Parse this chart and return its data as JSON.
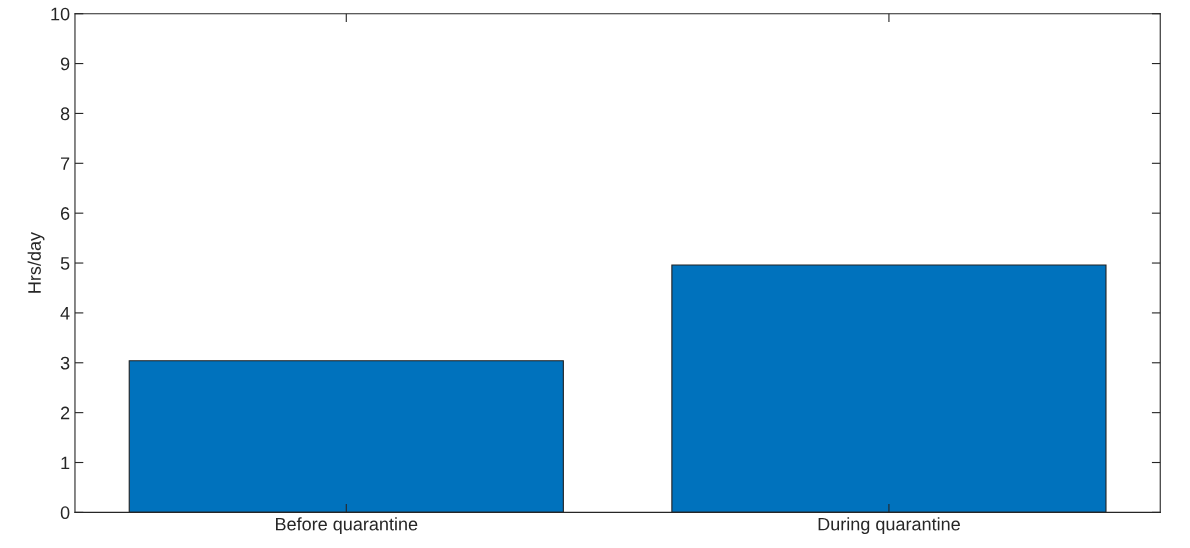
{
  "chart_data": {
    "type": "bar",
    "ylabel": "Hrs/day",
    "categories": [
      "Before quarantine",
      "During quarantine"
    ],
    "values": [
      3.04,
      4.96
    ],
    "color": "#0072bd",
    "ylim": [
      0,
      10
    ],
    "yticks": [
      0,
      1,
      2,
      3,
      4,
      5,
      6,
      7,
      8,
      9,
      10
    ],
    "grid": false
  }
}
